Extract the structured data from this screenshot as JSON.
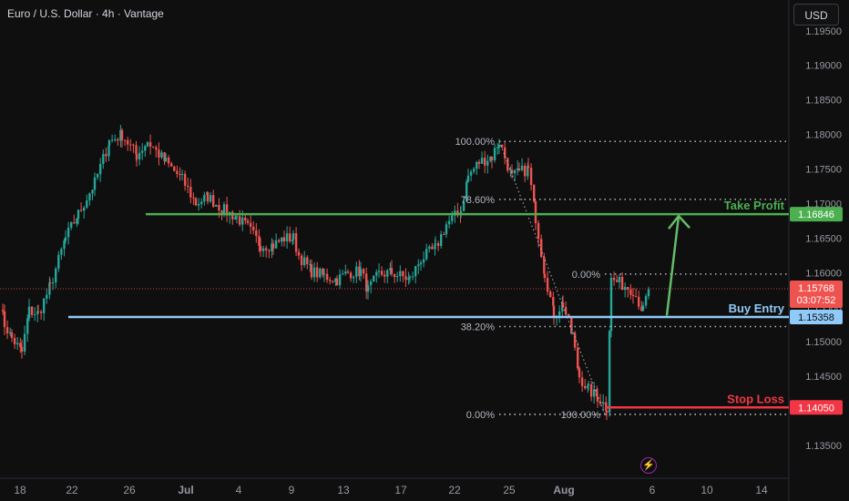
{
  "header": {
    "title": "Euro / U.S. Dollar · 4h · Vantage",
    "currency_label": "USD"
  },
  "toolbar": {
    "flash_icon": "lightning-icon",
    "flash_glyph": "⚡"
  },
  "colors": {
    "background": "#0f0f0f",
    "up": "#26a69a",
    "down": "#ef5350",
    "take_profit": "#4caf50",
    "buy_entry": "#90caf9",
    "stop_loss": "#f23645",
    "fib": "#b2b5be",
    "arrow": "#66bb6a"
  },
  "chart_data": {
    "type": "candlestick",
    "title": "Euro / U.S. Dollar · 4h · Vantage",
    "ylim": [
      1.1325,
      1.1955
    ],
    "y_ticks": [
      "1.19500",
      "1.19000",
      "1.18500",
      "1.18000",
      "1.17500",
      "1.17000",
      "1.16500",
      "1.16000",
      "1.15500",
      "1.15000",
      "1.14500",
      "1.14000",
      "1.13500"
    ],
    "x_ticks": [
      "18",
      "22",
      "26",
      "Jul",
      "4",
      "9",
      "13",
      "17",
      "22",
      "25",
      "Aug",
      "6",
      "10",
      "14"
    ],
    "grid": false,
    "anchors": [
      [
        0,
        1.1555
      ],
      [
        5,
        1.1525
      ],
      [
        13,
        1.1505
      ],
      [
        24,
        1.1485
      ],
      [
        32,
        1.1545
      ],
      [
        42,
        1.154
      ],
      [
        55,
        1.158
      ],
      [
        72,
        1.165
      ],
      [
        86,
        1.1685
      ],
      [
        104,
        1.173
      ],
      [
        120,
        1.179
      ],
      [
        134,
        1.18
      ],
      [
        150,
        1.177
      ],
      [
        162,
        1.179
      ],
      [
        182,
        1.176
      ],
      [
        200,
        1.1735
      ],
      [
        215,
        1.17
      ],
      [
        228,
        1.171
      ],
      [
        246,
        1.169
      ],
      [
        260,
        1.168
      ],
      [
        272,
        1.1665
      ],
      [
        286,
        1.164
      ],
      [
        300,
        1.164
      ],
      [
        312,
        1.165
      ],
      [
        322,
        1.165
      ],
      [
        328,
        1.1625
      ],
      [
        342,
        1.1602
      ],
      [
        356,
        1.1595
      ],
      [
        370,
        1.159
      ],
      [
        382,
        1.16
      ],
      [
        396,
        1.1602
      ],
      [
        404,
        1.1575
      ],
      [
        416,
        1.1598
      ],
      [
        430,
        1.16
      ],
      [
        450,
        1.159
      ],
      [
        462,
        1.162
      ],
      [
        478,
        1.1635
      ],
      [
        490,
        1.167
      ],
      [
        506,
        1.169
      ],
      [
        514,
        1.174
      ],
      [
        526,
        1.176
      ],
      [
        540,
        1.1768
      ],
      [
        548,
        1.179
      ],
      [
        562,
        1.1738
      ],
      [
        570,
        1.1745
      ],
      [
        580,
        1.175
      ],
      [
        588,
        1.168
      ],
      [
        598,
        1.16
      ],
      [
        608,
        1.154
      ],
      [
        618,
        1.1555
      ],
      [
        628,
        1.151
      ],
      [
        636,
        1.145
      ],
      [
        646,
        1.143
      ],
      [
        656,
        1.142
      ],
      [
        666,
        1.1405
      ],
      [
        671,
        1.159
      ],
      [
        680,
        1.1585
      ],
      [
        695,
        1.1575
      ],
      [
        706,
        1.1545
      ],
      [
        712,
        1.1576
      ]
    ],
    "price_levels": [
      {
        "name": "Take Profit",
        "value": 1.16846,
        "label": "1.16846"
      },
      {
        "name": "Buy Entry",
        "value": 1.15358,
        "label": "1.15358"
      },
      {
        "name": "Stop Loss",
        "value": 1.1405,
        "label": "1.14050"
      }
    ],
    "current_price": {
      "value": 1.15768,
      "label": "1.15768",
      "countdown": "03:07:52"
    },
    "fib_retracement_1": [
      {
        "level": "100.00%",
        "value": 1.179
      },
      {
        "level": "78.60%",
        "value": 1.1706
      },
      {
        "level": "38.20%",
        "value": 1.1522
      },
      {
        "level": "0.00%",
        "value": 1.1395
      }
    ],
    "fib_retracement_2": [
      {
        "level": "0.00%",
        "value": 1.1598
      },
      {
        "level": "100.00%",
        "value": 1.1395
      }
    ],
    "annotations": [
      "Take Profit",
      "Buy Entry",
      "Stop Loss"
    ]
  }
}
